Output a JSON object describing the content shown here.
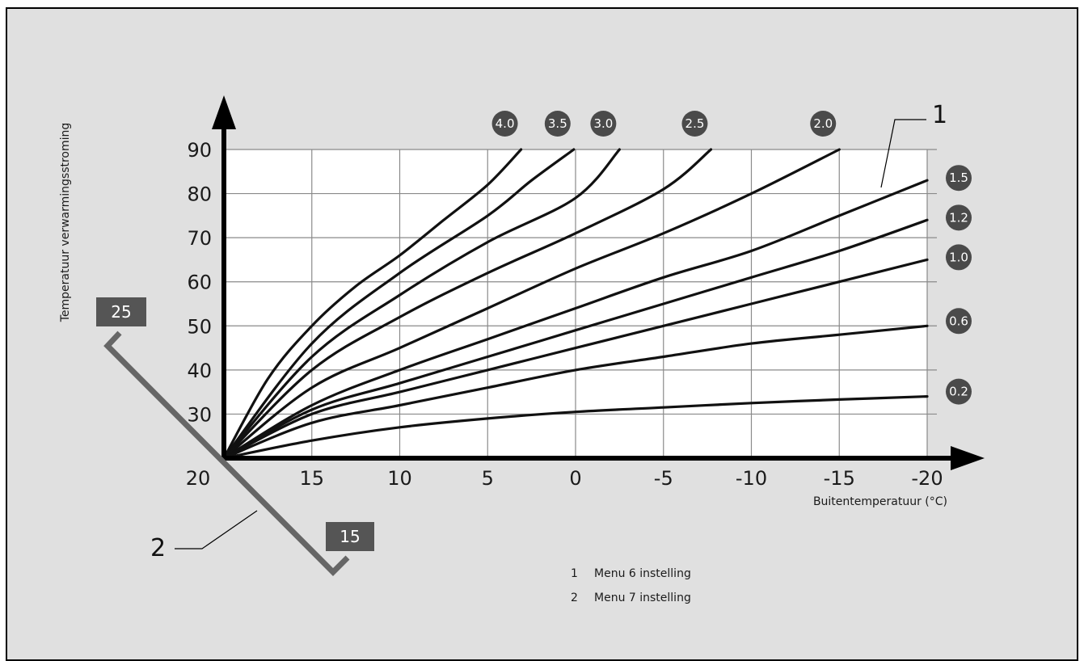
{
  "chart_data": {
    "type": "line",
    "title": "",
    "xlabel": "Buitentemperatuur (°C)",
    "ylabel": "Temperatuur verwarmingsstroming",
    "x_reversed": true,
    "xlim": [
      20,
      -20
    ],
    "ylim": [
      20,
      90
    ],
    "x_ticks": [
      "20",
      "15",
      "10",
      "5",
      "0",
      "-5",
      "-10",
      "-15",
      "-20"
    ],
    "y_ticks": [
      "90",
      "80",
      "70",
      "60",
      "50",
      "40",
      "30"
    ],
    "grid": true,
    "series": [
      {
        "name": "4.0",
        "x": [
          20,
          17.5,
          15,
          12.5,
          10,
          7.5,
          5,
          3.1
        ],
        "y": [
          20,
          38,
          50,
          59,
          66,
          74,
          82,
          90
        ]
      },
      {
        "name": "3.5",
        "x": [
          20,
          15,
          10,
          5,
          2.5,
          0.1
        ],
        "y": [
          20,
          46,
          62,
          75,
          83,
          90
        ]
      },
      {
        "name": "3.0",
        "x": [
          20,
          15,
          10,
          5,
          0,
          -2.5
        ],
        "y": [
          20,
          43,
          57,
          69,
          79,
          90
        ]
      },
      {
        "name": "2.5",
        "x": [
          20,
          15,
          10,
          5,
          0,
          -5,
          -7.7
        ],
        "y": [
          20,
          40,
          52,
          62,
          71,
          81,
          90
        ]
      },
      {
        "name": "2.0",
        "x": [
          20,
          15,
          10,
          5,
          0,
          -5,
          -10,
          -15
        ],
        "y": [
          20,
          36,
          45,
          54,
          63,
          71,
          80,
          90
        ]
      },
      {
        "name": "1.5",
        "x": [
          20,
          15,
          10,
          5,
          0,
          -5,
          -10,
          -15,
          -20
        ],
        "y": [
          20,
          32,
          40,
          47,
          54,
          61,
          67,
          75,
          83
        ]
      },
      {
        "name": "1.2",
        "x": [
          20,
          15,
          10,
          5,
          0,
          -5,
          -10,
          -15,
          -20
        ],
        "y": [
          20,
          31,
          37,
          43,
          49,
          55,
          61,
          67,
          74
        ]
      },
      {
        "name": "1.0",
        "x": [
          20,
          15,
          10,
          5,
          0,
          -5,
          -10,
          -15,
          -20
        ],
        "y": [
          20,
          30,
          35,
          40,
          45,
          50,
          55,
          60,
          65
        ]
      },
      {
        "name": "0.6",
        "x": [
          20,
          15,
          10,
          5,
          0,
          -5,
          -10,
          -15,
          -20
        ],
        "y": [
          20,
          28,
          32,
          36,
          40,
          43,
          46,
          48,
          50
        ]
      },
      {
        "name": "0.2",
        "x": [
          20,
          15,
          10,
          5,
          0,
          -5,
          -10,
          -15,
          -20
        ],
        "y": [
          20,
          24,
          27,
          29,
          30.5,
          31.5,
          32.5,
          33.3,
          34
        ]
      }
    ]
  },
  "offset_scale": {
    "top_label": "25",
    "bottom_label": "15"
  },
  "callouts": [
    {
      "number": "1",
      "text": "Menu 6 instelling"
    },
    {
      "number": "2",
      "text": "Menu 7 instelling"
    }
  ],
  "colors": {
    "background": "#e0e0e0",
    "plot": "#ffffff",
    "curve": "#111111",
    "badge": "#4a4a4a",
    "grid": "#8a8a8a"
  }
}
